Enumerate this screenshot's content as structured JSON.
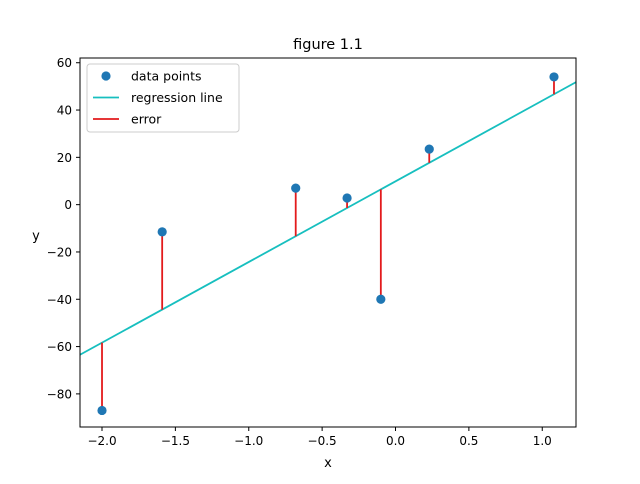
{
  "chart_data": {
    "type": "scatter",
    "title": "figure 1.1",
    "xlabel": "x",
    "ylabel": "y",
    "xlim": [
      -2.15,
      1.23
    ],
    "ylim": [
      -94,
      62
    ],
    "xticks": [
      -2.0,
      -1.5,
      -1.0,
      -0.5,
      0.0,
      0.5,
      1.0
    ],
    "xtick_labels": [
      "−2.0",
      "−1.5",
      "−1.0",
      "−0.5",
      "0.0",
      "0.5",
      "1.0"
    ],
    "yticks": [
      -80,
      -60,
      -40,
      -20,
      0,
      20,
      40,
      60
    ],
    "ytick_labels": [
      "−80",
      "−60",
      "−40",
      "−20",
      "0",
      "20",
      "40",
      "60"
    ],
    "grid": false,
    "legend_position": "top-left",
    "series": [
      {
        "name": "data points",
        "kind": "scatter",
        "color": "#1f77b4",
        "points": [
          {
            "x": -2.0,
            "y": -87
          },
          {
            "x": -1.59,
            "y": -11.5
          },
          {
            "x": -0.68,
            "y": 7
          },
          {
            "x": -0.33,
            "y": 2.8
          },
          {
            "x": -0.1,
            "y": -40
          },
          {
            "x": 0.23,
            "y": 23.5
          },
          {
            "x": 1.08,
            "y": 54
          }
        ]
      },
      {
        "name": "regression line",
        "kind": "line",
        "color": "#17bfbf",
        "slope": 34.1,
        "intercept": 9.85
      },
      {
        "name": "error",
        "kind": "residuals",
        "color": "#e31a1c"
      }
    ]
  }
}
